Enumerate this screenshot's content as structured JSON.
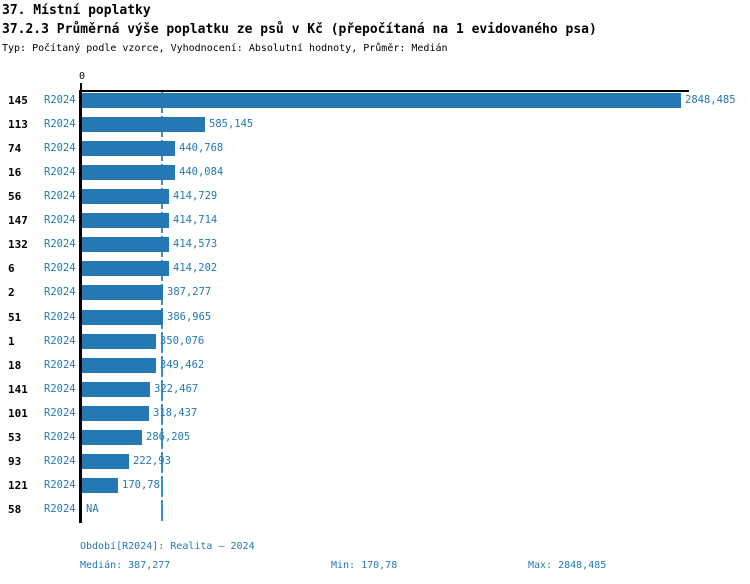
{
  "header": {
    "title": "37. Místní poplatky",
    "subtitle": "37.2.3 Průměrná výše poplatku ze psů v Kč (přepočítaná na 1 evidovaného psa)",
    "meta": "Typ: Počítaný podle vzorce, Vyhodnocení: Absolutní hodnoty, Průměr: Medián"
  },
  "colors": {
    "bar": "#2478b4",
    "label_text": "#2478b4",
    "median_line": "#3f8fc4",
    "axis": "#000000"
  },
  "chart_data": {
    "type": "bar",
    "orientation": "horizontal",
    "title": "37.2.3 Průměrná výše poplatku ze psů v Kč (přepočítaná na 1 evidovaného psa)",
    "xlabel": "",
    "ylabel": "",
    "xlim": [
      0,
      2890
    ],
    "zero_label": "0",
    "grid": false,
    "median_reference_line": 387.277,
    "categories": [
      "145",
      "113",
      "74",
      "16",
      "56",
      "147",
      "132",
      "6",
      "2",
      "51",
      "1",
      "18",
      "141",
      "101",
      "53",
      "93",
      "121",
      "58"
    ],
    "series": [
      {
        "name": "R2024",
        "values": [
          2848.485,
          585.145,
          440.768,
          440.084,
          414.729,
          414.714,
          414.573,
          414.202,
          387.277,
          386.965,
          350.076,
          349.462,
          322.467,
          318.437,
          286.205,
          222.93,
          170.78,
          null
        ]
      }
    ],
    "value_labels": [
      "2848,485",
      "585,145",
      "440,768",
      "440,084",
      "414,729",
      "414,714",
      "414,573",
      "414,202",
      "387,277",
      "386,965",
      "350,076",
      "349,462",
      "322,467",
      "318,437",
      "286,205",
      "222,93",
      "170,78",
      "NA"
    ]
  },
  "footer": {
    "period_line": "Období[R2024]: Realita – 2024",
    "median": "Medián: 387,277",
    "min": "Min: 170,78",
    "max": "Max: 2848,485"
  }
}
